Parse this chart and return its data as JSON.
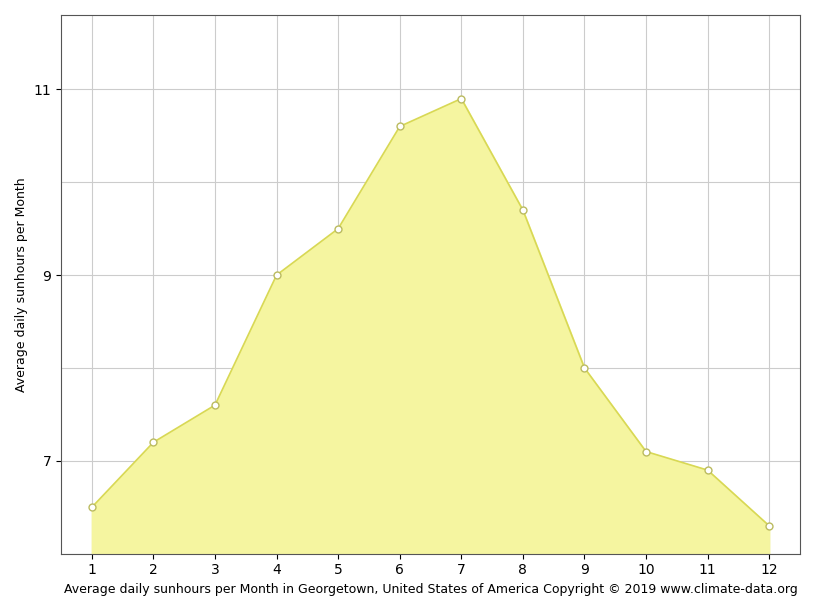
{
  "months": [
    1,
    2,
    3,
    4,
    5,
    6,
    7,
    8,
    9,
    10,
    11,
    12
  ],
  "sunhours": [
    6.5,
    7.2,
    7.6,
    9.0,
    9.5,
    10.6,
    10.9,
    9.7,
    8.0,
    7.1,
    6.9,
    6.3
  ],
  "fill_color": "#F5F5A0",
  "line_color": "#D8D855",
  "marker_facecolor": "#FFFFFF",
  "marker_edgecolor": "#BBBB60",
  "background_color": "#FFFFFF",
  "grid_color": "#CCCCCC",
  "ylabel": "Average daily sunhours per Month",
  "xlabel": "Average daily sunhours per Month in Georgetown, United States of America Copyright © 2019 www.climate-data.org",
  "ytick_major": [
    7,
    9,
    11
  ],
  "ylim": [
    6.0,
    11.8
  ],
  "xlim": [
    0.5,
    12.5
  ],
  "xticks": [
    1,
    2,
    3,
    4,
    5,
    6,
    7,
    8,
    9,
    10,
    11,
    12
  ],
  "axis_label_fontsize": 9,
  "tick_fontsize": 10
}
